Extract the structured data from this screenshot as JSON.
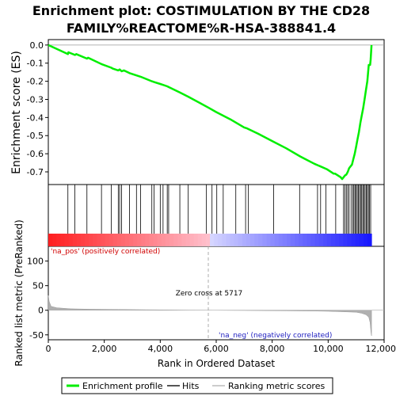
{
  "chart_data": {
    "type": "line",
    "title_line1": "Enrichment plot: COSTIMULATION BY THE CD28",
    "title_line2": "FAMILY%REACTOME%R-HSA-388841.4",
    "es_ylabel": "Enrichment score (ES)",
    "metric_ylabel": "Ranked list metric (PreRanked)",
    "xlabel": "Rank in Ordered Dataset",
    "xlim": [
      0,
      12000
    ],
    "x_ticks": [
      0,
      2000,
      4000,
      6000,
      8000,
      10000,
      12000
    ],
    "x_tick_labels": [
      "0",
      "2,000",
      "4,000",
      "6,000",
      "8,000",
      "10,000",
      "12,000"
    ],
    "es_ylim": [
      -0.77,
      0.03
    ],
    "es_ticks": [
      0.0,
      -0.1,
      -0.2,
      -0.3,
      -0.4,
      -0.5,
      -0.6,
      -0.7
    ],
    "es_tick_labels": [
      "0.0",
      "-0.1",
      "-0.2",
      "-0.3",
      "-0.4",
      "-0.5",
      "-0.6",
      "-0.7"
    ],
    "metric_ylim": [
      -60,
      130
    ],
    "metric_ticks": [
      100,
      50,
      0,
      -50
    ],
    "metric_tick_labels": [
      "100",
      "50",
      "0",
      "-50"
    ],
    "series": [
      {
        "name": "Enrichment profile",
        "color": "#00ee00",
        "x": [
          0,
          700,
          720,
          950,
          1000,
          1380,
          1420,
          1900,
          2250,
          2300,
          2500,
          2550,
          2620,
          2700,
          2900,
          3300,
          3700,
          3800,
          4000,
          4100,
          4250,
          4300,
          4700,
          5000,
          5717,
          6000,
          6500,
          7000,
          7100,
          7500,
          8000,
          8500,
          9000,
          9500,
          9650,
          9700,
          9950,
          10000,
          10200,
          10250,
          10450,
          10500,
          10600,
          10650,
          10700,
          10750,
          10850,
          10900,
          10950,
          11000,
          11050,
          11100,
          11150,
          11200,
          11250,
          11300,
          11350,
          11400,
          11450,
          11500,
          11520,
          11550
        ],
        "values": [
          0.0,
          -0.05,
          -0.04,
          -0.055,
          -0.05,
          -0.075,
          -0.07,
          -0.105,
          -0.125,
          -0.13,
          -0.14,
          -0.135,
          -0.145,
          -0.14,
          -0.155,
          -0.175,
          -0.2,
          -0.205,
          -0.215,
          -0.22,
          -0.228,
          -0.232,
          -0.262,
          -0.285,
          -0.345,
          -0.37,
          -0.41,
          -0.455,
          -0.46,
          -0.49,
          -0.53,
          -0.57,
          -0.615,
          -0.655,
          -0.665,
          -0.668,
          -0.685,
          -0.69,
          -0.71,
          -0.71,
          -0.73,
          -0.74,
          -0.72,
          -0.715,
          -0.7,
          -0.68,
          -0.66,
          -0.63,
          -0.6,
          -0.56,
          -0.52,
          -0.48,
          -0.43,
          -0.39,
          -0.35,
          -0.3,
          -0.25,
          -0.2,
          -0.11,
          -0.11,
          -0.08,
          0.0
        ]
      }
    ],
    "hits": [
      700,
      950,
      1380,
      1900,
      2250,
      2500,
      2550,
      2620,
      2900,
      3150,
      3300,
      3700,
      3780,
      4000,
      4100,
      4250,
      4300,
      4700,
      5000,
      5650,
      5850,
      6020,
      6250,
      6700,
      7050,
      7150,
      8050,
      8980,
      9620,
      9730,
      9920,
      10270,
      10550,
      10600,
      10650,
      10700,
      10750,
      10820,
      10880,
      10920,
      10960,
      11000,
      11040,
      11080,
      11120,
      11160,
      11200,
      11240,
      11280,
      11320,
      11360,
      11400,
      11440,
      11480,
      11520
    ],
    "metric": {
      "x": [
        0,
        30,
        100,
        300,
        800,
        1500,
        2500,
        3500,
        4500,
        5000,
        5717,
        6500,
        7500,
        8500,
        9500,
        10000,
        10500,
        11000,
        11200,
        11350,
        11450,
        11500,
        11530,
        11550
      ],
      "values": [
        30,
        18,
        8,
        5,
        3,
        2.2,
        1.6,
        1.1,
        0.6,
        0.3,
        0,
        -0.3,
        -0.6,
        -1.0,
        -1.5,
        -2,
        -3,
        -4,
        -6,
        -9,
        -14,
        -25,
        -45,
        -52
      ]
    },
    "annotations": {
      "zero_cross": "Zero cross at 5717",
      "zero_cross_x": 5717,
      "pos_label": "'na_pos' (positively correlated)",
      "neg_label": "'na_neg' (negatively correlated)"
    },
    "legend": {
      "items": [
        "Enrichment profile",
        "Hits",
        "Ranking metric scores"
      ],
      "placement": "bottom"
    },
    "colors": {
      "profile": "#00ee00",
      "hits": "#000000",
      "metric_fill": "#b0b0b0",
      "pos_text": "#d00000",
      "neg_text": "#2020c0",
      "heat_red": "#ff0000",
      "heat_blue": "#0000ff"
    }
  }
}
